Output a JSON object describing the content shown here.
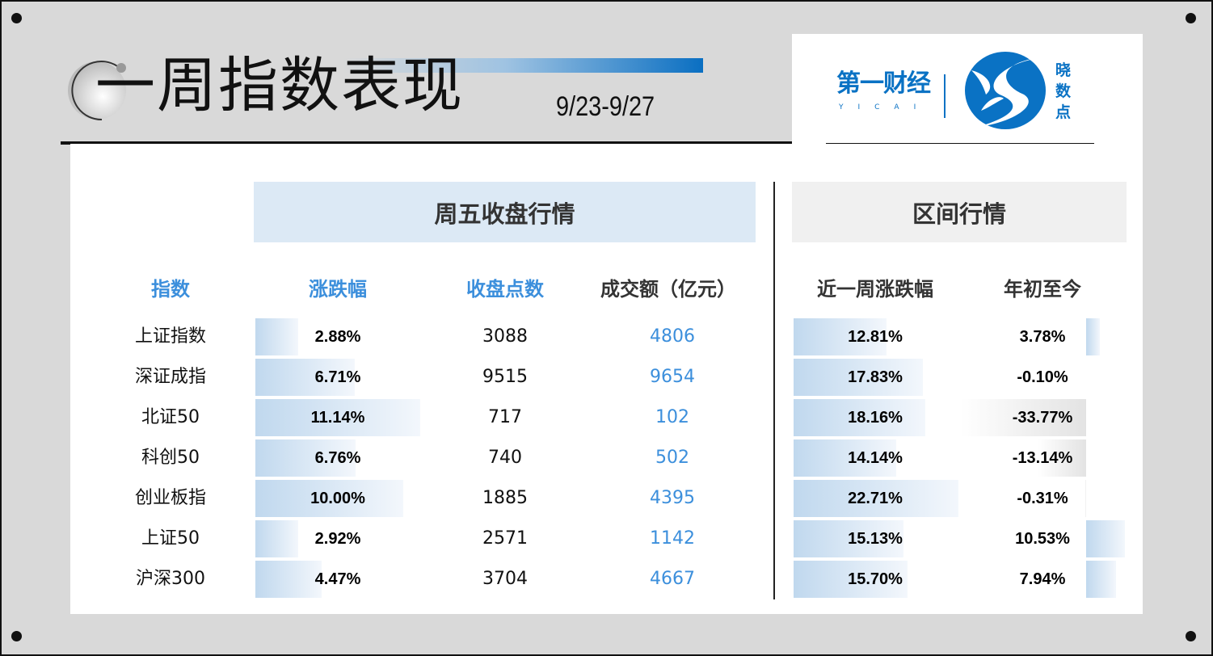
{
  "header": {
    "title": "一周指数表现",
    "date_range": "9/23-9/27"
  },
  "logo": {
    "brand": "第一财经",
    "brand_sub": "YICAI",
    "product": "晓数点"
  },
  "sections": {
    "friday": "周五收盘行情",
    "period": "区间行情"
  },
  "columns": {
    "index": "指数",
    "change": "涨跌幅",
    "close": "收盘点数",
    "turnover": "成交额（亿元）",
    "week_change": "近一周涨跌幅",
    "ytd": "年初至今"
  },
  "colors": {
    "accent_blue": "#3c8fdc",
    "bar_blue": "#c0d8ee",
    "section_blue": "#dce9f5"
  },
  "rows": [
    {
      "name": "上证指数",
      "change": "2.88%",
      "close": "3088",
      "turnover": "4806",
      "week": "12.81%",
      "ytd": "3.78%"
    },
    {
      "name": "深证成指",
      "change": "6.71%",
      "close": "9515",
      "turnover": "9654",
      "week": "17.83%",
      "ytd": "-0.10%"
    },
    {
      "name": "北证50",
      "change": "11.14%",
      "close": "717",
      "turnover": "102",
      "week": "18.16%",
      "ytd": "-33.77%"
    },
    {
      "name": "科创50",
      "change": "6.76%",
      "close": "740",
      "turnover": "502",
      "week": "14.14%",
      "ytd": "-13.14%"
    },
    {
      "name": "创业板指",
      "change": "10.00%",
      "close": "1885",
      "turnover": "4395",
      "week": "22.71%",
      "ytd": "-0.31%"
    },
    {
      "name": "上证50",
      "change": "2.92%",
      "close": "2571",
      "turnover": "1142",
      "week": "15.13%",
      "ytd": "10.53%"
    },
    {
      "name": "沪深300",
      "change": "4.47%",
      "close": "3704",
      "turnover": "4667",
      "week": "15.70%",
      "ytd": "7.94%"
    }
  ]
}
